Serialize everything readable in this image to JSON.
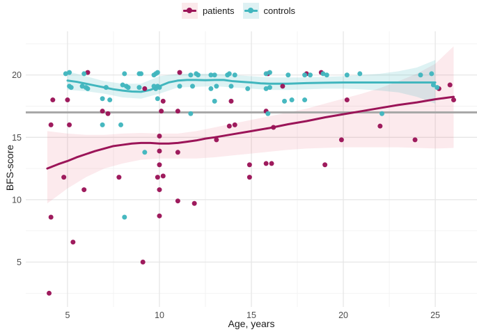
{
  "legend": {
    "items": [
      {
        "id": "patients",
        "label": "patients"
      },
      {
        "id": "controls",
        "label": "controls"
      }
    ]
  },
  "chart_data": {
    "type": "scatter",
    "title": "",
    "xlabel": "Age, years",
    "ylabel": "BFS-score",
    "xlim": [
      2.73,
      27.27
    ],
    "ylim": [
      1.4,
      23.5
    ],
    "xticks": [
      5,
      10,
      15,
      20,
      25
    ],
    "yticks": [
      5,
      10,
      15,
      20
    ],
    "xminor": [
      7.5,
      12.5,
      17.5,
      22.5
    ],
    "yminor": [
      2.5,
      7.5,
      12.5,
      17.5,
      22.5
    ],
    "grid": "on",
    "legend_position": "top-center",
    "reference_line": {
      "y": 17,
      "color": "#a8a8a8",
      "width": 3
    },
    "colors": {
      "patients": "#9B1458",
      "controls": "#41B6BE",
      "patients_ribbon": "#E8556E",
      "controls_ribbon": "#41B6BE",
      "patients_key_fill": "#FBE9EB",
      "controls_key_fill": "#DEF1F3",
      "grid_major": "#E6E6E6",
      "grid_minor": "#F2F2F2",
      "tick_text": "#4d4d4d"
    },
    "series": [
      {
        "name": "patients",
        "color": "#9B1458",
        "ribbon_color": "#E8556E",
        "ribbon_opacity": 0.12,
        "points": [
          [
            4.0,
            2.5
          ],
          [
            4.1,
            8.6
          ],
          [
            4.2,
            18.0
          ],
          [
            4.1,
            16.0
          ],
          [
            4.8,
            11.8
          ],
          [
            5.0,
            18.0
          ],
          [
            5.1,
            16.0
          ],
          [
            5.3,
            6.6
          ],
          [
            5.9,
            10.8
          ],
          [
            6.1,
            20.2
          ],
          [
            6.9,
            17.1
          ],
          [
            7.2,
            16.9
          ],
          [
            7.8,
            11.8
          ],
          [
            9.1,
            5.0
          ],
          [
            9.2,
            18.9
          ],
          [
            9.9,
            11.8
          ],
          [
            10.0,
            15.1
          ],
          [
            10.0,
            13.9
          ],
          [
            10.0,
            12.8
          ],
          [
            10.0,
            10.8
          ],
          [
            10.0,
            8.7
          ],
          [
            10.1,
            17.1
          ],
          [
            10.2,
            17.9
          ],
          [
            10.2,
            11.9
          ],
          [
            11.0,
            17.1
          ],
          [
            11.0,
            13.8
          ],
          [
            11.0,
            9.9
          ],
          [
            11.1,
            20.2
          ],
          [
            11.9,
            9.7
          ],
          [
            13.1,
            14.8
          ],
          [
            13.8,
            15.9
          ],
          [
            13.9,
            17.9
          ],
          [
            14.1,
            16.0
          ],
          [
            14.9,
            12.8
          ],
          [
            14.9,
            11.8
          ],
          [
            15.8,
            12.9
          ],
          [
            15.8,
            17.1
          ],
          [
            15.9,
            20.1
          ],
          [
            16.1,
            12.9
          ],
          [
            16.2,
            15.8
          ],
          [
            16.7,
            19.1
          ],
          [
            18.0,
            20.1
          ],
          [
            18.8,
            20.2
          ],
          [
            19.0,
            12.8
          ],
          [
            19.9,
            14.8
          ],
          [
            20.2,
            18.0
          ],
          [
            22.0,
            15.9
          ],
          [
            23.9,
            14.8
          ],
          [
            25.2,
            18.9
          ],
          [
            25.8,
            19.2
          ],
          [
            26.0,
            18.0
          ]
        ],
        "trend": [
          [
            3.9,
            12.5
          ],
          [
            4.5,
            12.85
          ],
          [
            5,
            13.1
          ],
          [
            5.5,
            13.4
          ],
          [
            6,
            13.65
          ],
          [
            6.5,
            13.9
          ],
          [
            7,
            14.1
          ],
          [
            7.5,
            14.3
          ],
          [
            8,
            14.4
          ],
          [
            8.5,
            14.5
          ],
          [
            9,
            14.55
          ],
          [
            9.5,
            14.55
          ],
          [
            10,
            14.5
          ],
          [
            10.5,
            14.5
          ],
          [
            11,
            14.55
          ],
          [
            11.5,
            14.65
          ],
          [
            12,
            14.75
          ],
          [
            12.5,
            14.9
          ],
          [
            13,
            15.0
          ],
          [
            14,
            15.25
          ],
          [
            15,
            15.5
          ],
          [
            16,
            15.75
          ],
          [
            17,
            16.05
          ],
          [
            18,
            16.3
          ],
          [
            19,
            16.6
          ],
          [
            20,
            16.85
          ],
          [
            21,
            17.1
          ],
          [
            22,
            17.35
          ],
          [
            23,
            17.6
          ],
          [
            24,
            17.8
          ],
          [
            25,
            18.05
          ],
          [
            26,
            18.25
          ]
        ],
        "ribbon_upper": [
          [
            3.9,
            15.5
          ],
          [
            5,
            15.3
          ],
          [
            6,
            15.2
          ],
          [
            7,
            15.2
          ],
          [
            8,
            15.3
          ],
          [
            9,
            15.35
          ],
          [
            10,
            15.3
          ],
          [
            11,
            15.3
          ],
          [
            12,
            15.5
          ],
          [
            13,
            15.8
          ],
          [
            14,
            16.1
          ],
          [
            15,
            16.4
          ],
          [
            16,
            16.7
          ],
          [
            17,
            17.0
          ],
          [
            18,
            17.3
          ],
          [
            19,
            17.7
          ],
          [
            20,
            18.1
          ],
          [
            21,
            18.5
          ],
          [
            22,
            18.95
          ],
          [
            23,
            19.5
          ],
          [
            24,
            20.1
          ],
          [
            25,
            20.9
          ],
          [
            26,
            22.3
          ]
        ],
        "ribbon_lower": [
          [
            3.9,
            9.7
          ],
          [
            5,
            10.9
          ],
          [
            6,
            11.8
          ],
          [
            7,
            12.5
          ],
          [
            8,
            12.9
          ],
          [
            9,
            13.2
          ],
          [
            10,
            13.3
          ],
          [
            11,
            13.3
          ],
          [
            12,
            13.3
          ],
          [
            13,
            13.4
          ],
          [
            14,
            13.55
          ],
          [
            15,
            13.7
          ],
          [
            16,
            13.85
          ],
          [
            17,
            14.0
          ],
          [
            18,
            14.1
          ],
          [
            19,
            14.15
          ],
          [
            20,
            14.2
          ],
          [
            21,
            14.2
          ],
          [
            22,
            14.2
          ],
          [
            23,
            14.2
          ],
          [
            24,
            14.15
          ],
          [
            25,
            14.1
          ],
          [
            26,
            14.15
          ]
        ]
      },
      {
        "name": "controls",
        "color": "#41B6BE",
        "ribbon_color": "#41B6BE",
        "ribbon_opacity": 0.18,
        "points": [
          [
            4.9,
            20.1
          ],
          [
            5.1,
            20.2
          ],
          [
            5.1,
            19.1
          ],
          [
            5.2,
            19.0
          ],
          [
            5.8,
            19.1
          ],
          [
            5.9,
            20.1
          ],
          [
            6.0,
            19.0
          ],
          [
            6.1,
            18.9
          ],
          [
            6.9,
            18.1
          ],
          [
            6.9,
            16.0
          ],
          [
            7.1,
            19.0
          ],
          [
            7.3,
            18.0
          ],
          [
            7.9,
            16.0
          ],
          [
            8.1,
            20.1
          ],
          [
            8.0,
            19.2
          ],
          [
            8.2,
            19.1
          ],
          [
            8.3,
            19.0
          ],
          [
            8.1,
            8.6
          ],
          [
            8.9,
            20.1
          ],
          [
            8.9,
            19.0
          ],
          [
            9.0,
            20.1
          ],
          [
            9.2,
            13.8
          ],
          [
            9.7,
            20.0
          ],
          [
            9.8,
            20.1
          ],
          [
            9.9,
            20.2
          ],
          [
            9.7,
            19.1
          ],
          [
            9.8,
            18.9
          ],
          [
            9.9,
            19.1
          ],
          [
            10.0,
            19.0
          ],
          [
            9.9,
            18.1
          ],
          [
            11.1,
            19.1
          ],
          [
            11.7,
            20.0
          ],
          [
            11.8,
            19.1
          ],
          [
            11.7,
            16.9
          ],
          [
            12.0,
            20.1
          ],
          [
            12.1,
            20.0
          ],
          [
            12.8,
            20.0
          ],
          [
            13.0,
            20.0
          ],
          [
            12.8,
            18.9
          ],
          [
            13.1,
            19.1
          ],
          [
            13.0,
            17.9
          ],
          [
            13.7,
            20.0
          ],
          [
            13.8,
            20.1
          ],
          [
            14.1,
            20.0
          ],
          [
            13.9,
            19.1
          ],
          [
            14.8,
            18.9
          ],
          [
            15.8,
            20.1
          ],
          [
            16.0,
            20.2
          ],
          [
            15.8,
            18.9
          ],
          [
            16.0,
            19.0
          ],
          [
            15.9,
            16.9
          ],
          [
            17.0,
            20.0
          ],
          [
            16.8,
            17.9
          ],
          [
            17.2,
            18.0
          ],
          [
            17.9,
            20.0
          ],
          [
            18.2,
            20.0
          ],
          [
            17.9,
            18.0
          ],
          [
            18.9,
            20.1
          ],
          [
            19.1,
            20.0
          ],
          [
            20.2,
            20.0
          ],
          [
            20.9,
            20.1
          ],
          [
            22.1,
            16.9
          ],
          [
            24.2,
            20.0
          ],
          [
            24.8,
            20.1
          ],
          [
            24.9,
            19.2
          ],
          [
            25.1,
            19.0
          ]
        ],
        "trend": [
          [
            5,
            19.55
          ],
          [
            5.5,
            19.45
          ],
          [
            6,
            19.3
          ],
          [
            6.5,
            19.15
          ],
          [
            7,
            19.0
          ],
          [
            7.5,
            18.85
          ],
          [
            8,
            18.75
          ],
          [
            8.5,
            18.67
          ],
          [
            9,
            18.65
          ],
          [
            9.5,
            18.8
          ],
          [
            10,
            19.1
          ],
          [
            10.5,
            19.4
          ],
          [
            11,
            19.55
          ],
          [
            11.5,
            19.6
          ],
          [
            12,
            19.6
          ],
          [
            12.5,
            19.58
          ],
          [
            13,
            19.6
          ],
          [
            13.5,
            19.6
          ],
          [
            14,
            19.5
          ],
          [
            14.5,
            19.45
          ],
          [
            15,
            19.4
          ],
          [
            15.5,
            19.33
          ],
          [
            16,
            19.3
          ],
          [
            17,
            19.3
          ],
          [
            18,
            19.35
          ],
          [
            19,
            19.38
          ],
          [
            20,
            19.4
          ],
          [
            21,
            19.4
          ],
          [
            22,
            19.4
          ],
          [
            23,
            19.4
          ],
          [
            24,
            19.4
          ],
          [
            25,
            19.4
          ]
        ],
        "ribbon_upper": [
          [
            5,
            20.3
          ],
          [
            6,
            19.9
          ],
          [
            7,
            19.5
          ],
          [
            8,
            19.3
          ],
          [
            9,
            19.3
          ],
          [
            10,
            19.9
          ],
          [
            11,
            20.1
          ],
          [
            12,
            20.1
          ],
          [
            13,
            20.1
          ],
          [
            14,
            20.0
          ],
          [
            15,
            19.9
          ],
          [
            16,
            19.8
          ],
          [
            17,
            19.8
          ],
          [
            18,
            19.8
          ],
          [
            19,
            19.85
          ],
          [
            20,
            19.9
          ],
          [
            21,
            20.0
          ],
          [
            22,
            20.1
          ],
          [
            23,
            20.3
          ],
          [
            24,
            20.6
          ],
          [
            25,
            21.2
          ]
        ],
        "ribbon_lower": [
          [
            5,
            18.8
          ],
          [
            6,
            18.7
          ],
          [
            7,
            18.5
          ],
          [
            8,
            18.2
          ],
          [
            9,
            18.1
          ],
          [
            10,
            18.5
          ],
          [
            11,
            19.0
          ],
          [
            12,
            19.05
          ],
          [
            13,
            19.1
          ],
          [
            14,
            19.0
          ],
          [
            15,
            18.9
          ],
          [
            16,
            18.8
          ],
          [
            17,
            18.8
          ],
          [
            18,
            18.85
          ],
          [
            19,
            18.9
          ],
          [
            20,
            18.9
          ],
          [
            21,
            18.85
          ],
          [
            22,
            18.75
          ],
          [
            23,
            18.6
          ],
          [
            24,
            18.25
          ],
          [
            25,
            17.7
          ]
        ]
      }
    ]
  }
}
